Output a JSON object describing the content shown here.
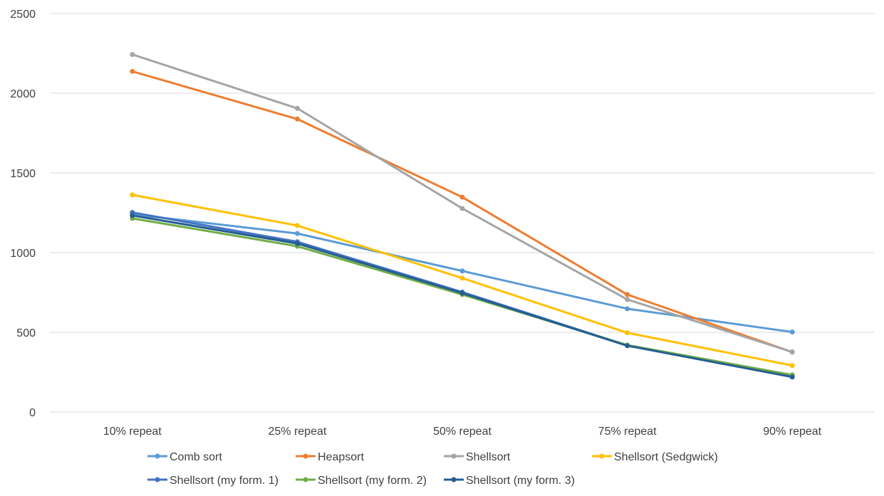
{
  "chart_data": {
    "type": "line",
    "title": "",
    "xlabel": "",
    "ylabel": "",
    "categories": [
      "10% repeat",
      "25% repeat",
      "50% repeat",
      "75% repeat",
      "90% repeat"
    ],
    "ylim": [
      0,
      2500
    ],
    "yticks": [
      0,
      500,
      1000,
      1500,
      2000,
      2500
    ],
    "grid": "horizontal",
    "legend": "bottom",
    "series": [
      {
        "name": "Comb sort",
        "color": "#5b9bd5",
        "values": [
          1240,
          1120,
          885,
          648,
          502
        ]
      },
      {
        "name": "Heapsort",
        "color": "#ed7d31",
        "values": [
          2137,
          1838,
          1348,
          737,
          376
        ]
      },
      {
        "name": "Shellsort",
        "color": "#a5a5a5",
        "values": [
          2243,
          1905,
          1277,
          706,
          377
        ]
      },
      {
        "name": "Shellsort (Sedgwick)",
        "color": "#ffc000",
        "values": [
          1362,
          1170,
          840,
          497,
          292
        ]
      },
      {
        "name": "Shellsort (my form. 1)",
        "color": "#4472c4",
        "values": [
          1252,
          1068,
          752,
          418,
          228
        ]
      },
      {
        "name": "Shellsort (my form. 2)",
        "color": "#70ad47",
        "values": [
          1215,
          1040,
          737,
          420,
          233
        ]
      },
      {
        "name": "Shellsort (my form. 3)",
        "color": "#255e91",
        "values": [
          1233,
          1057,
          746,
          416,
          220
        ]
      }
    ]
  }
}
